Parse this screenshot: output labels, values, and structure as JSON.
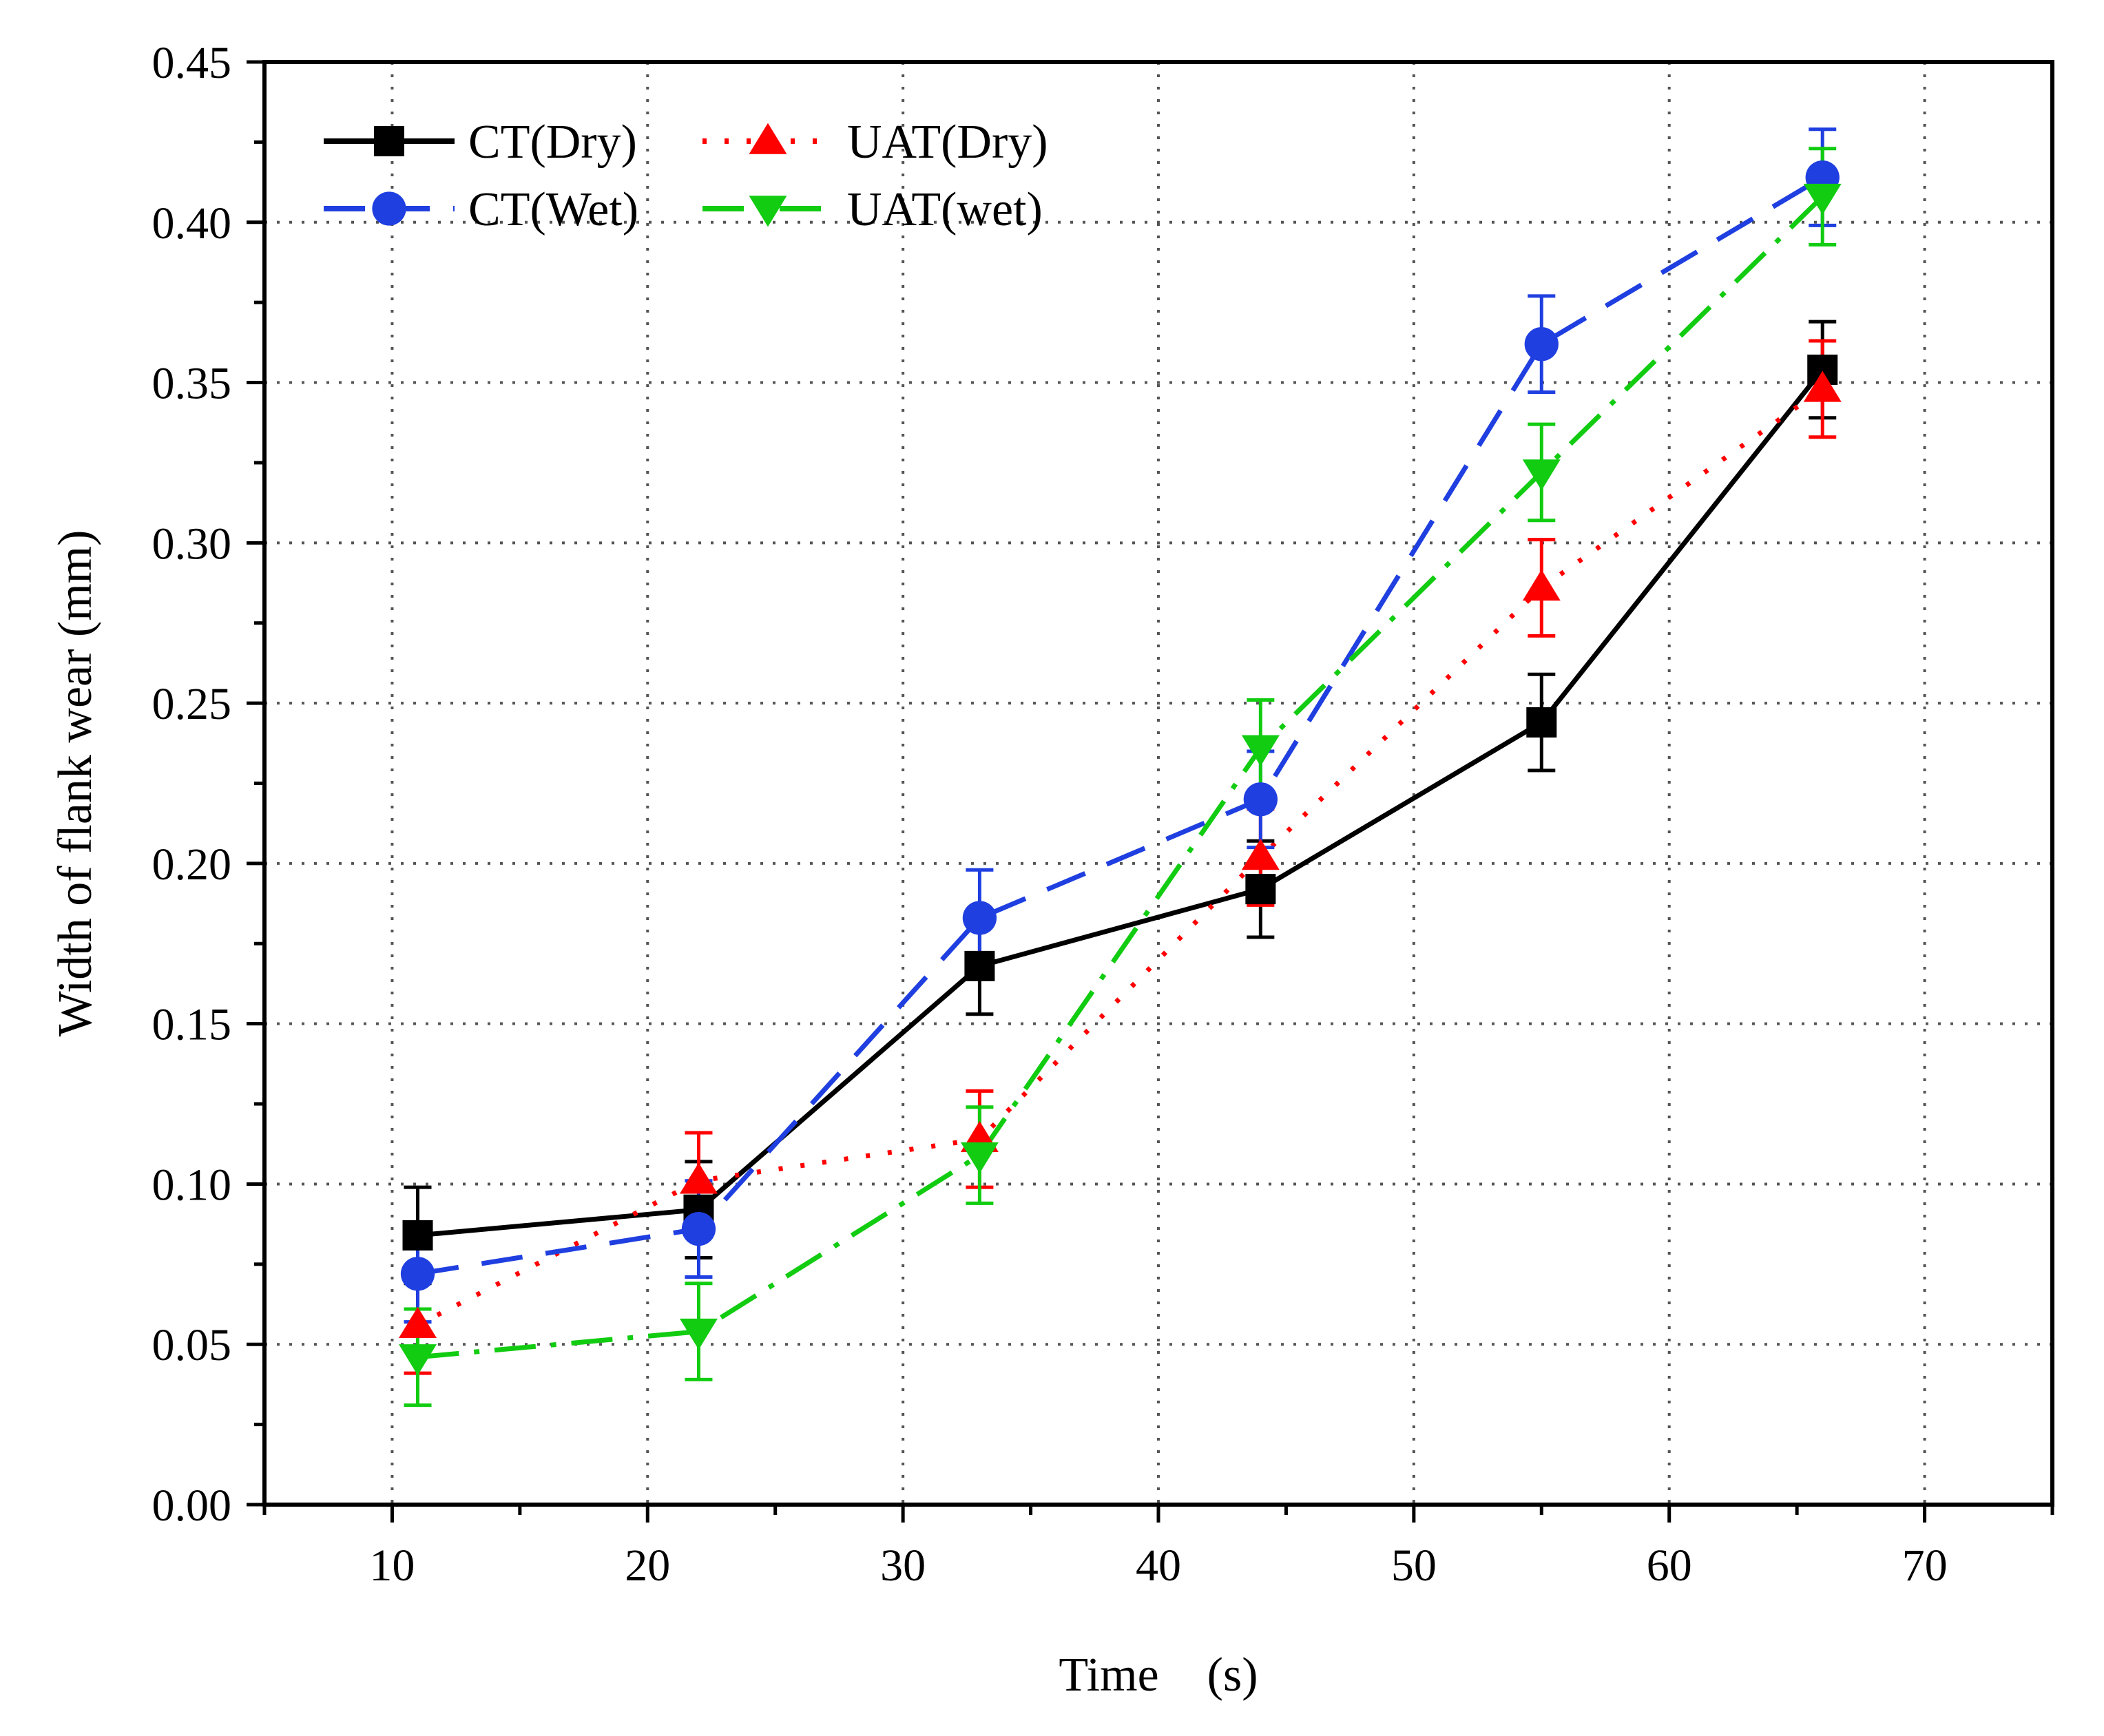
{
  "chart_data": {
    "type": "line",
    "title": "",
    "xlabel": "Time　(s)",
    "ylabel": "Width of flank wear (mm)",
    "xlim": [
      5,
      75
    ],
    "ylim": [
      0.0,
      0.45
    ],
    "x_ticks": [
      10,
      20,
      30,
      40,
      50,
      60,
      70
    ],
    "x_tick_labels": [
      "10",
      "20",
      "30",
      "40",
      "50",
      "60",
      "70"
    ],
    "y_ticks": [
      0.0,
      0.05,
      0.1,
      0.15,
      0.2,
      0.25,
      0.3,
      0.35,
      0.4,
      0.45
    ],
    "y_tick_labels": [
      "0.00",
      "0.05",
      "0.10",
      "0.15",
      "0.20",
      "0.25",
      "0.30",
      "0.35",
      "0.40",
      "0.45"
    ],
    "grid": true,
    "legend_position": "top-left",
    "x": [
      11,
      22,
      33,
      44,
      55,
      66
    ],
    "series": [
      {
        "name": "CT(Dry)",
        "color": "#000000",
        "dash": "solid",
        "marker": "square",
        "values": [
          0.084,
          0.092,
          0.168,
          0.192,
          0.244,
          0.354
        ],
        "errors": [
          0.015,
          0.015,
          0.015,
          0.015,
          0.015,
          0.015
        ]
      },
      {
        "name": "UAT(Dry)",
        "color": "#ff0000",
        "dash": "dot",
        "marker": "triangle-up",
        "values": [
          0.056,
          0.101,
          0.114,
          0.202,
          0.286,
          0.348
        ],
        "errors": [
          0.015,
          0.015,
          0.015,
          0.015,
          0.015,
          0.015
        ]
      },
      {
        "name": "CT(Wet)",
        "color": "#1f3fe0",
        "dash": "dash",
        "marker": "circle",
        "values": [
          0.072,
          0.086,
          0.183,
          0.22,
          0.362,
          0.414
        ],
        "errors": [
          0.015,
          0.015,
          0.015,
          0.015,
          0.015,
          0.015
        ]
      },
      {
        "name": "UAT(wet)",
        "color": "#11cc11",
        "dash": "dashdot",
        "marker": "triangle-down",
        "values": [
          0.046,
          0.054,
          0.109,
          0.236,
          0.322,
          0.408
        ],
        "errors": [
          0.015,
          0.015,
          0.015,
          0.015,
          0.015,
          0.015
        ]
      }
    ]
  }
}
